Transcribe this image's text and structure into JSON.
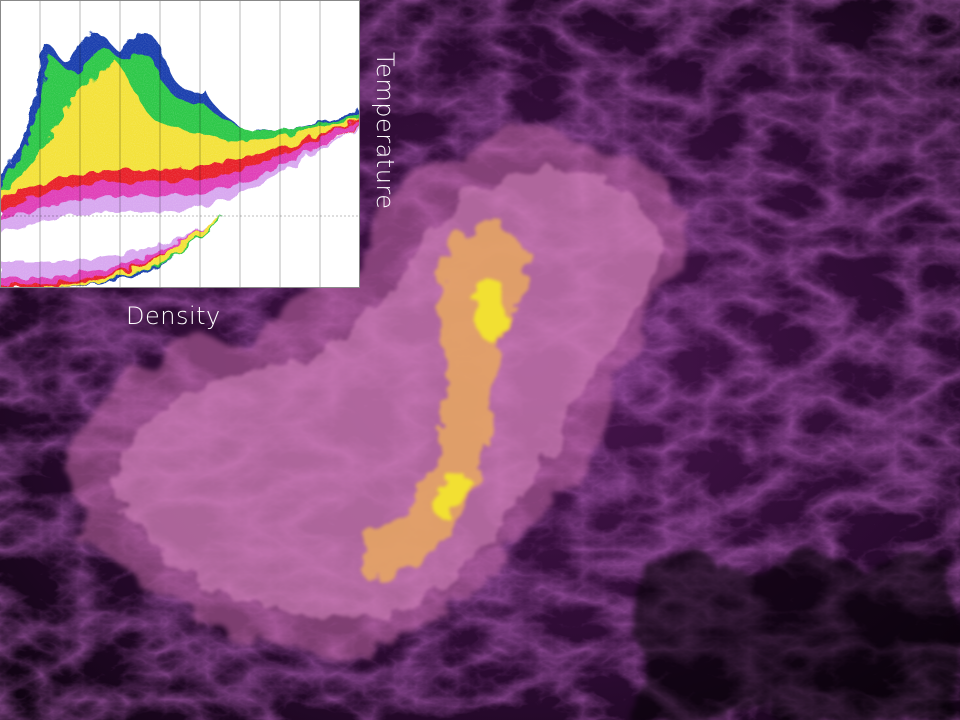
{
  "figure": {
    "xlabel": "Density",
    "ylabel": "Temperature"
  },
  "colors": {
    "background": "#000000",
    "cloud_outer": "#7a2a7e",
    "cloud_mid": "#c46aa8",
    "cloud_inner": "#e8a860",
    "cloud_core": "#f2e030"
  }
}
